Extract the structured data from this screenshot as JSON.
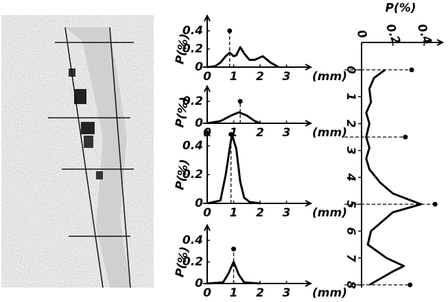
{
  "chart_data": [
    {
      "type": "line",
      "ylabel": "P(%)",
      "xlabel": "(mm)",
      "xlim": [
        0,
        3.4
      ],
      "ylim": [
        0,
        0.4
      ],
      "xticks": [
        0,
        1,
        2,
        3
      ],
      "yticks": [
        0,
        0.2,
        0.4
      ],
      "x": [
        0,
        0.3,
        0.5,
        0.7,
        0.85,
        1.0,
        1.1,
        1.25,
        1.4,
        1.6,
        1.8,
        2.1,
        2.4,
        2.7
      ],
      "values": [
        0,
        0.01,
        0.05,
        0.12,
        0.16,
        0.12,
        0.13,
        0.22,
        0.15,
        0.08,
        0.08,
        0.12,
        0.05,
        0
      ],
      "color": "#000000",
      "markers": [
        {
          "x": 0.85,
          "y": 0.4
        }
      ]
    },
    {
      "type": "line",
      "ylabel": "P(%)",
      "xlabel": "(mm)",
      "xlim": [
        0,
        3.4
      ],
      "ylim": [
        0,
        0.2
      ],
      "xticks": [
        0,
        1,
        2,
        3
      ],
      "yticks": [
        0,
        0.2
      ],
      "x": [
        0,
        0.5,
        0.9,
        1.2,
        1.5,
        1.8,
        2.0
      ],
      "values": [
        0,
        0.02,
        0.07,
        0.1,
        0.07,
        0.02,
        0
      ],
      "color": "#000000",
      "markers": [
        {
          "x": 1.25,
          "y": 0.2
        }
      ]
    },
    {
      "type": "line",
      "ylabel": "P(%)",
      "xlabel": "(mm)",
      "xlim": [
        0,
        3.4
      ],
      "ylim": [
        0,
        0.4
      ],
      "xticks": [
        0,
        1,
        2,
        3
      ],
      "yticks": [
        0,
        0.2,
        0.4
      ],
      "x": [
        0,
        0.5,
        0.7,
        0.9,
        0.95,
        1.1,
        1.25,
        1.4,
        1.6,
        2.0
      ],
      "values": [
        0,
        0.02,
        0.2,
        0.44,
        0.47,
        0.38,
        0.15,
        0.04,
        0.01,
        0
      ],
      "color": "#000000",
      "markers": [
        {
          "x": 0.9,
          "y": 0.48
        }
      ]
    },
    {
      "type": "line",
      "ylabel": "P(%)",
      "xlabel": "(mm)",
      "xlim": [
        0,
        3.4
      ],
      "ylim": [
        0,
        0.4
      ],
      "xticks": [
        0,
        1,
        2,
        3
      ],
      "yticks": [
        0,
        0.2,
        0.4
      ],
      "x": [
        0,
        0.6,
        0.8,
        1.0,
        1.2,
        1.4,
        2.0
      ],
      "values": [
        0,
        0.01,
        0.09,
        0.2,
        0.08,
        0.01,
        0
      ],
      "color": "#000000",
      "markers": [
        {
          "x": 1.0,
          "y": 0.32
        }
      ]
    },
    {
      "type": "line",
      "orientation": "vertical",
      "ylabel": "P(%)",
      "xlim": [
        0,
        8
      ],
      "ylim": [
        0,
        0.5
      ],
      "xticks": [
        0,
        1,
        2,
        3,
        4,
        5,
        6,
        7,
        8
      ],
      "yticks": [
        0,
        0.2,
        0.4
      ],
      "x": [
        0,
        0.3,
        0.7,
        1.2,
        1.6,
        2.0,
        2.5,
        2.9,
        3.3,
        3.7,
        4.2,
        4.6,
        5.0,
        5.3,
        5.7,
        6.0,
        6.5,
        7.0,
        7.3,
        7.5,
        8.0
      ],
      "values": [
        0.15,
        0.08,
        0.05,
        0.06,
        0.03,
        0.05,
        0.03,
        0.05,
        0.03,
        0.05,
        0.12,
        0.2,
        0.38,
        0.2,
        0.12,
        0.06,
        0.04,
        0.16,
        0.27,
        0.2,
        0.05
      ],
      "color": "#000000",
      "markers": [
        {
          "x": 0,
          "y": 0.32
        },
        {
          "x": 2.5,
          "y": 0.28
        },
        {
          "x": 5,
          "y": 0.47
        },
        {
          "x": 8,
          "y": 0.31
        }
      ]
    }
  ]
}
